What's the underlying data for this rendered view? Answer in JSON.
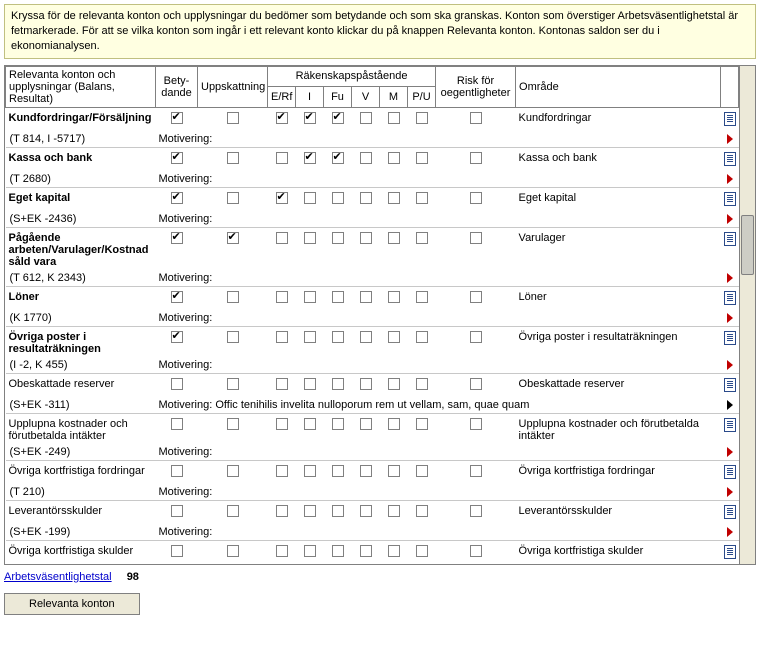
{
  "info_text": "Kryssa för de relevanta konton och upplysningar du bedömer som betydande och som ska granskas. Konton som överstiger Arbetsväsentlighetstal är fetmarkerade. För att se vilka konton som ingår i ett relevant konto klickar du på knappen Relevanta konton. Kontonas saldon ser du i ekonomianalysen.",
  "headers": {
    "konto": "Relevanta konton och upplysningar (Balans, Resultat)",
    "bety": "Bety-dande",
    "upp": "Uppskattning",
    "raken": "Räkenskapspåstående",
    "erf": "E/Rf",
    "i": "I",
    "fu": "Fu",
    "v": "V",
    "m": "M",
    "pu": "P/U",
    "risk": "Risk för oegentligheter",
    "omr": "Område"
  },
  "motivering_label": "Motivering:",
  "rows": [
    {
      "title": "Kundfordringar/Försäljning",
      "bold": true,
      "sub": "(T 814, I -5717)",
      "bety": true,
      "upp": false,
      "erf": true,
      "i": true,
      "fu": true,
      "v": false,
      "m": false,
      "pu": false,
      "risk": false,
      "omr": "Kundfordringar",
      "motiv": "",
      "tri": "red"
    },
    {
      "title": "Kassa och bank",
      "bold": true,
      "sub": "(T 2680)",
      "bety": true,
      "upp": false,
      "erf": false,
      "i": true,
      "fu": true,
      "v": false,
      "m": false,
      "pu": false,
      "risk": false,
      "omr": "Kassa och bank",
      "motiv": "",
      "tri": "red"
    },
    {
      "title": "Eget kapital",
      "bold": true,
      "sub": "(S+EK -2436)",
      "bety": true,
      "upp": false,
      "erf": true,
      "i": false,
      "fu": false,
      "v": false,
      "m": false,
      "pu": false,
      "risk": false,
      "omr": "Eget kapital",
      "motiv": "",
      "tri": "red"
    },
    {
      "title": "Pågående arbeten/Varulager/Kostnad såld vara",
      "bold": true,
      "sub": "(T 612, K 2343)",
      "bety": true,
      "upp": true,
      "erf": false,
      "i": false,
      "fu": false,
      "v": false,
      "m": false,
      "pu": false,
      "risk": false,
      "omr": "Varulager",
      "motiv": "",
      "tri": "red"
    },
    {
      "title": "Löner",
      "bold": true,
      "sub": "(K 1770)",
      "bety": true,
      "upp": false,
      "erf": false,
      "i": false,
      "fu": false,
      "v": false,
      "m": false,
      "pu": false,
      "risk": false,
      "omr": "Löner",
      "motiv": "",
      "tri": "red"
    },
    {
      "title": "Övriga poster i resultaträkningen",
      "bold": true,
      "sub": "(I -2, K 455)",
      "bety": true,
      "upp": false,
      "erf": false,
      "i": false,
      "fu": false,
      "v": false,
      "m": false,
      "pu": false,
      "risk": false,
      "omr": "Övriga poster i resultaträkningen",
      "motiv": "",
      "tri": "red"
    },
    {
      "title": "Obeskattade reserver",
      "bold": false,
      "sub": "(S+EK -311)",
      "bety": false,
      "upp": false,
      "erf": false,
      "i": false,
      "fu": false,
      "v": false,
      "m": false,
      "pu": false,
      "risk": false,
      "omr": "Obeskattade reserver",
      "motiv": "Offic tenihilis invelita nulloporum rem ut vellam, sam, quae quam",
      "tri": "dark"
    },
    {
      "title": "Upplupna kostnader och förutbetalda intäkter",
      "bold": false,
      "sub": "(S+EK -249)",
      "bety": false,
      "upp": false,
      "erf": false,
      "i": false,
      "fu": false,
      "v": false,
      "m": false,
      "pu": false,
      "risk": false,
      "omr": "Upplupna kostnader och förutbetalda intäkter",
      "motiv": "",
      "tri": "red"
    },
    {
      "title": "Övriga kortfristiga fordringar",
      "bold": false,
      "sub": "(T 210)",
      "bety": false,
      "upp": false,
      "erf": false,
      "i": false,
      "fu": false,
      "v": false,
      "m": false,
      "pu": false,
      "risk": false,
      "omr": "Övriga kortfristiga fordringar",
      "motiv": "",
      "tri": "red"
    },
    {
      "title": "Leverantörsskulder",
      "bold": false,
      "sub": "(S+EK -199)",
      "bety": false,
      "upp": false,
      "erf": false,
      "i": false,
      "fu": false,
      "v": false,
      "m": false,
      "pu": false,
      "risk": false,
      "omr": "Leverantörsskulder",
      "motiv": "",
      "tri": "red"
    },
    {
      "title": "Övriga kortfristiga skulder",
      "bold": false,
      "sub": "",
      "bety": false,
      "upp": false,
      "erf": false,
      "i": false,
      "fu": false,
      "v": false,
      "m": false,
      "pu": false,
      "risk": false,
      "omr": "Övriga kortfristiga skulder",
      "motiv": "",
      "tri": "red",
      "no_motiv_row": true
    }
  ],
  "footer": {
    "link": "Arbetsväsentlighetstal",
    "value": "98",
    "button": "Relevanta konton"
  }
}
